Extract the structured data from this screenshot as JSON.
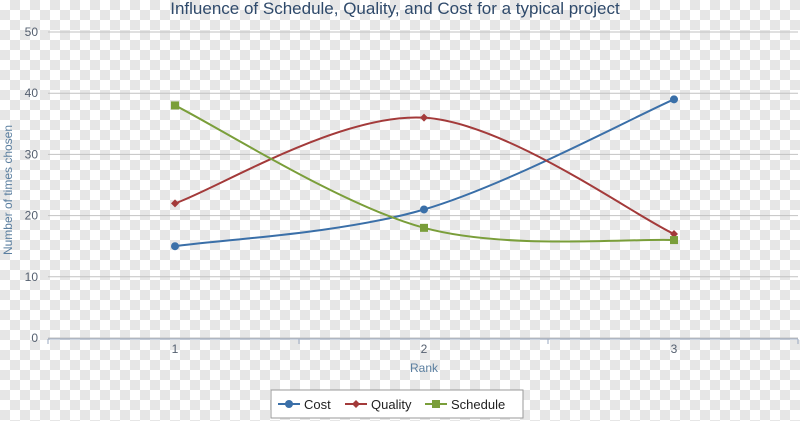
{
  "chart_data": {
    "type": "line",
    "title": "Influence of Schedule, Quality, and Cost for a typical project",
    "xlabel": "Rank",
    "ylabel": "Number of times chosen",
    "categories": [
      "1",
      "2",
      "3"
    ],
    "ylim": [
      0,
      50
    ],
    "yticks": [
      "0",
      "10",
      "20",
      "30",
      "40",
      "50"
    ],
    "grid": true,
    "legend_position": "bottom",
    "series": [
      {
        "name": "Cost",
        "values": [
          15,
          21,
          39
        ],
        "color": "#3a6fa8",
        "marker": "circle"
      },
      {
        "name": "Quality",
        "values": [
          22,
          36,
          17
        ],
        "color": "#a33a3a",
        "marker": "diamond"
      },
      {
        "name": "Schedule",
        "values": [
          38,
          18,
          16
        ],
        "color": "#7a9e3a",
        "marker": "square"
      }
    ]
  }
}
